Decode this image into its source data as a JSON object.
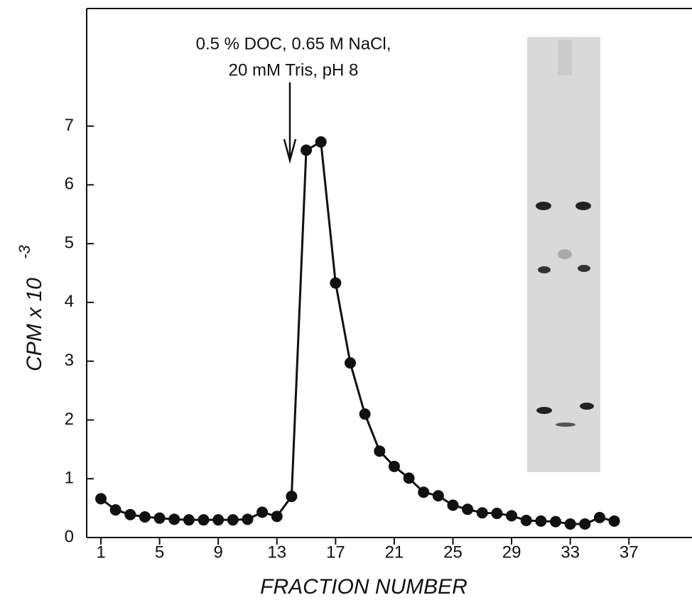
{
  "chart_data": {
    "type": "line",
    "ylabel": "CPM x 10",
    "ylabel_superscript": "-3",
    "xlabel": "FRACTION NUMBER",
    "annotation": [
      "0.5 % DOC, 0.65 M NaCl,",
      "20 mM Tris, pH 8"
    ],
    "x": [
      1,
      2,
      3,
      4,
      5,
      6,
      7,
      8,
      9,
      10,
      11,
      12,
      13,
      14,
      15,
      16,
      17,
      18,
      19,
      20,
      21,
      22,
      23,
      24,
      25,
      26,
      27,
      28,
      29,
      30,
      31,
      32,
      33,
      34,
      35,
      36
    ],
    "series": [
      {
        "color": "#111111",
        "values": [
          0.66,
          0.47,
          0.39,
          0.35,
          0.33,
          0.31,
          0.3,
          0.3,
          0.3,
          0.3,
          0.31,
          0.43,
          0.36,
          0.7,
          6.59,
          6.73,
          4.33,
          2.97,
          2.1,
          1.47,
          1.21,
          1.01,
          0.77,
          0.71,
          0.55,
          0.48,
          0.42,
          0.41,
          0.37,
          0.29,
          0.28,
          0.27,
          0.23,
          0.23,
          0.34,
          0.28
        ]
      }
    ],
    "xlim": [
      0.03,
      41.3
    ],
    "xticks": [
      1,
      5,
      9,
      13,
      17,
      21,
      25,
      29,
      33,
      37
    ],
    "ylim": [
      0,
      9
    ],
    "yticks": [
      0,
      1,
      2,
      3,
      4,
      5,
      6,
      7
    ]
  }
}
